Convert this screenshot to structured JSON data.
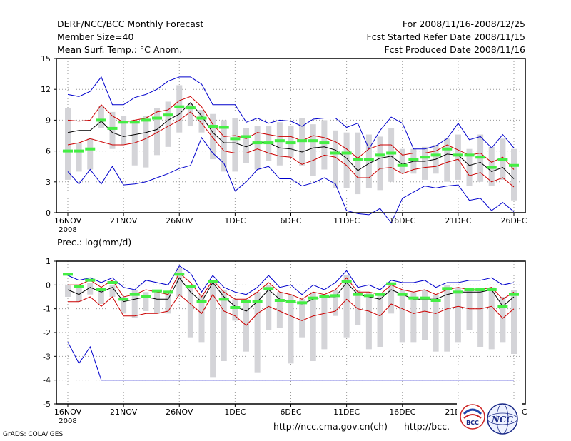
{
  "header": {
    "title": "DERF/NCC/BCC Monthly Forecast",
    "member_size": "Member Size=40",
    "variable": "Mean Surf. Temp.: °C Anom.",
    "period": "For 2008/11/16-2008/12/25",
    "refer_date": "Fcst Started Refer Date 2008/11/15",
    "produced_date": "Fcst Produced Date 2008/11/16"
  },
  "footer": {
    "url1": "http://ncc.cma.gov.cn(ch)",
    "url2": "http://bcc.",
    "credit": "GrADS: COLA/IGES",
    "logo_left": "BCC",
    "logo_right": "NCC"
  },
  "chart_data": [
    {
      "type": "line",
      "title": "Mean Surf. Temp.: °C Anom.",
      "ylim": [
        0,
        15
      ],
      "yticks": [
        0,
        3,
        6,
        9,
        12,
        15
      ],
      "xticks": [
        {
          "day": 0,
          "label": "16NOV",
          "sub": "2008"
        },
        {
          "day": 5,
          "label": "21NOV"
        },
        {
          "day": 10,
          "label": "26NOV"
        },
        {
          "day": 15,
          "label": "1DEC"
        },
        {
          "day": 20,
          "label": "6DEC"
        },
        {
          "day": 25,
          "label": "11DEC"
        },
        {
          "day": 30,
          "label": "16DEC"
        },
        {
          "day": 35,
          "label": "21DEC"
        },
        {
          "day": 40,
          "label": "26DEC"
        }
      ],
      "grid": true,
      "colors": {
        "max": "#0000cc",
        "min": "#0000cc",
        "spread": "#cc0000",
        "mean": "#000000",
        "obs": "#44ee44",
        "box": "#d4d4d8"
      },
      "series": [
        {
          "name": "max",
          "values": [
            11.5,
            11.3,
            11.8,
            13.2,
            10.5,
            10.5,
            11.2,
            11.5,
            12,
            12.8,
            13.2,
            13.2,
            12.5,
            10.5,
            10.5,
            10.5,
            8.8,
            9.2,
            8.7,
            9,
            8.9,
            8.4,
            9.1,
            9.2,
            9.2,
            8.3,
            8.7,
            6.2,
            8,
            9.3,
            8.7,
            6.2,
            6.2,
            6.5,
            7.2,
            8.7,
            7.1,
            7.4,
            6.3,
            7.6,
            6.3
          ]
        },
        {
          "name": "min",
          "values": [
            4,
            2.8,
            4.2,
            2.8,
            4.5,
            2.7,
            2.8,
            3,
            3.4,
            3.8,
            4.3,
            4.6,
            7.3,
            5.8,
            4.8,
            2.1,
            3,
            4.2,
            4.5,
            3.3,
            3.3,
            2.6,
            2.9,
            3.4,
            2.8,
            0.2,
            -0.1,
            -0.2,
            0.4,
            -1,
            1.4,
            2,
            2.6,
            2.4,
            2.6,
            2.7,
            1.2,
            1.4,
            0.2,
            1,
            0.1
          ]
        },
        {
          "name": "upper",
          "values": [
            9,
            8.9,
            9,
            10.5,
            9.4,
            8.8,
            9,
            9.2,
            9.8,
            10,
            10.9,
            11.3,
            10.3,
            8.6,
            7.4,
            7.5,
            7.2,
            7.8,
            7.6,
            7.4,
            7.4,
            7,
            7.5,
            7.3,
            6.9,
            6.2,
            5.3,
            6.2,
            6.6,
            6.6,
            5.6,
            5.8,
            5.8,
            6,
            6.6,
            6.1,
            5.6,
            5.8,
            4.9,
            5.4,
            4.2
          ]
        },
        {
          "name": "lower",
          "values": [
            6.6,
            6.8,
            7.2,
            6.9,
            6.6,
            6.6,
            6.8,
            7.2,
            7.8,
            8.4,
            9,
            9.8,
            8.7,
            7.3,
            6,
            5.8,
            5.8,
            6.2,
            5.8,
            5.5,
            5.4,
            4.7,
            5.1,
            5.6,
            5.4,
            4.6,
            3.4,
            3.4,
            4.3,
            4.4,
            3.8,
            4.2,
            4.4,
            4.5,
            4.9,
            5.2,
            3.6,
            3.9,
            3,
            3.4,
            2.5
          ]
        },
        {
          "name": "mean",
          "values": [
            7.8,
            8,
            8,
            8.9,
            7.8,
            7.4,
            7.6,
            7.8,
            8.1,
            9,
            9.6,
            10.7,
            9.4,
            7.8,
            6.8,
            6.8,
            6.4,
            6.9,
            6.8,
            6.3,
            6.2,
            5.9,
            6.3,
            6.4,
            6.1,
            5.3,
            4.1,
            4.8,
            5.3,
            5.5,
            4.7,
            5,
            5,
            5.2,
            5.7,
            5.6,
            4.6,
            4.9,
            4,
            4.4,
            3.3
          ]
        },
        {
          "name": "obs",
          "values": [
            6,
            6,
            6.2,
            9,
            8.2,
            8.8,
            8.8,
            9,
            9.2,
            9.5,
            10.3,
            10.2,
            9.2,
            8.4,
            8.3,
            7.2,
            7.4,
            6.8,
            6.8,
            7,
            6.8,
            7,
            7,
            6.8,
            5.8,
            5.8,
            5.2,
            5.2,
            5.6,
            5.8,
            4.6,
            5.2,
            5.4,
            5.6,
            6.2,
            5.6,
            5.6,
            5.4,
            4.4,
            5.2,
            4.6
          ]
        },
        {
          "name": "box_high",
          "values": [
            10.2,
            6.8,
            7.2,
            10.4,
            9.8,
            9.4,
            8.8,
            9.4,
            10.2,
            10.8,
            12.4,
            10.6,
            10,
            9.6,
            9,
            9.2,
            8.2,
            8.4,
            8.4,
            8.8,
            8.4,
            9.2,
            8.6,
            9,
            8,
            7.8,
            7.8,
            7.6,
            7.4,
            8.2,
            6.2,
            6.2,
            6.4,
            6.6,
            7.2,
            7.6,
            6.2,
            7.6,
            6.4,
            7.2,
            6.2
          ]
        },
        {
          "name": "box_low",
          "values": [
            3.2,
            4,
            4.2,
            8.2,
            6.2,
            6.6,
            4.6,
            4.4,
            5.6,
            6.4,
            7.8,
            8.4,
            7.8,
            5.2,
            4,
            4,
            4.8,
            4.2,
            5,
            4.6,
            5.4,
            4.6,
            3.6,
            4.2,
            2.4,
            2.4,
            1.8,
            2.4,
            2.2,
            3,
            3.8,
            3.8,
            3.2,
            3.8,
            3,
            3.2,
            2.6,
            3,
            2.6,
            3.2,
            1.2
          ]
        }
      ]
    },
    {
      "type": "line",
      "title": "Prec.: log(mm/d)",
      "ylim": [
        -5,
        1
      ],
      "yticks": [
        -5,
        -4,
        -3,
        -2,
        -1,
        0,
        1
      ],
      "xticks": [
        {
          "day": 0,
          "label": "16NOV",
          "sub": "2008"
        },
        {
          "day": 5,
          "label": "21NOV"
        },
        {
          "day": 10,
          "label": "26NOV"
        },
        {
          "day": 15,
          "label": "1DEC"
        },
        {
          "day": 20,
          "label": "6DEC"
        },
        {
          "day": 25,
          "label": "11DEC"
        },
        {
          "day": 30,
          "label": "16DEC"
        },
        {
          "day": 35,
          "label": "21DEC"
        },
        {
          "day": 40,
          "label": "26DEC"
        }
      ],
      "grid": true,
      "colors": {
        "max": "#0000cc",
        "min": "#0000cc",
        "spread": "#cc0000",
        "mean": "#000000",
        "obs": "#44ee44",
        "box": "#d4d4d8"
      },
      "series": [
        {
          "name": "max",
          "values": [
            0.4,
            0.2,
            0.3,
            0.1,
            0.3,
            -0.1,
            -0.2,
            0.2,
            0.1,
            0,
            0.8,
            0.5,
            -0.3,
            0.4,
            -0.1,
            -0.3,
            -0.4,
            -0.1,
            0.4,
            -0.1,
            0,
            -0.4,
            0,
            -0.2,
            0.1,
            0.6,
            -0.1,
            0,
            -0.2,
            0.2,
            0.1,
            0.1,
            0.2,
            -0.1,
            0.1,
            0.1,
            0.2,
            0.2,
            0.3,
            0,
            0.1
          ]
        },
        {
          "name": "min",
          "values": [
            -2.4,
            -3.3,
            -2.6,
            -4,
            -4,
            -4,
            -4,
            -4,
            -4,
            -4,
            -4,
            -4,
            -4,
            -4,
            -4,
            -4,
            -4,
            -4,
            -4,
            -4,
            -4,
            -4,
            -4,
            -4,
            -4,
            -4,
            -4,
            -4,
            -4,
            -4,
            -4,
            -4,
            -4,
            -4,
            -4,
            -4,
            -4,
            -4,
            -4,
            -4,
            -4
          ]
        },
        {
          "name": "upper",
          "values": [
            0,
            0,
            0.2,
            -0.1,
            0.2,
            -0.5,
            -0.4,
            -0.2,
            -0.3,
            -0.4,
            0.5,
            0.1,
            -0.5,
            0.2,
            -0.3,
            -0.6,
            -0.6,
            -0.3,
            0.1,
            -0.3,
            -0.4,
            -0.6,
            -0.3,
            -0.4,
            -0.2,
            0.3,
            -0.3,
            -0.3,
            -0.4,
            0,
            -0.2,
            -0.3,
            -0.2,
            -0.4,
            -0.2,
            -0.1,
            -0.2,
            -0.2,
            -0.1,
            -0.6,
            -0.3
          ]
        },
        {
          "name": "lower",
          "values": [
            -0.7,
            -0.7,
            -0.5,
            -0.9,
            -0.5,
            -1.3,
            -1.3,
            -1.2,
            -1.2,
            -1.1,
            -0.4,
            -0.8,
            -1.2,
            -0.4,
            -1.1,
            -1.3,
            -1.7,
            -1.2,
            -0.9,
            -1.1,
            -1.3,
            -1.5,
            -1.3,
            -1.2,
            -1.1,
            -0.6,
            -1,
            -1.1,
            -1.3,
            -0.8,
            -1,
            -1.2,
            -1.1,
            -1.2,
            -1,
            -0.9,
            -1,
            -1,
            -0.9,
            -1.4,
            -1
          ]
        },
        {
          "name": "mean",
          "values": [
            -0.2,
            -0.4,
            -0.1,
            -0.3,
            -0.1,
            -0.7,
            -0.6,
            -0.5,
            -0.6,
            -0.6,
            0.3,
            -0.3,
            -0.7,
            0.1,
            -0.5,
            -0.9,
            -1.1,
            -0.7,
            -0.2,
            -0.6,
            -0.7,
            -0.8,
            -0.6,
            -0.5,
            -0.5,
            0.1,
            -0.4,
            -0.5,
            -0.6,
            -0.2,
            -0.4,
            -0.6,
            -0.6,
            -0.6,
            -0.4,
            -0.3,
            -0.3,
            -0.3,
            -0.2,
            -0.9,
            -0.5
          ]
        },
        {
          "name": "obs",
          "values": [
            0.45,
            -0.05,
            0.2,
            -0.2,
            0.1,
            -0.6,
            -0.4,
            -0.5,
            -0.25,
            -0.3,
            0.45,
            -0.05,
            -0.7,
            0.15,
            -0.6,
            -0.95,
            -0.7,
            -0.7,
            -0.15,
            -0.65,
            -0.7,
            -0.75,
            -0.55,
            -0.5,
            -0.45,
            0.15,
            -0.4,
            -0.45,
            -0.4,
            0.05,
            -0.4,
            -0.55,
            -0.55,
            -0.65,
            -0.15,
            -0.3,
            -0.2,
            -0.2,
            -0.2,
            -0.9,
            -0.4
          ]
        },
        {
          "name": "box_high",
          "values": [
            0,
            -0.1,
            0.1,
            -0.2,
            0,
            -0.5,
            -0.2,
            -0.3,
            -0.3,
            -0.3,
            0.7,
            0,
            -0.4,
            0.1,
            -0.2,
            -0.6,
            -0.6,
            -0.3,
            0,
            -0.3,
            -0.4,
            -0.6,
            -0.3,
            -0.4,
            -0.2,
            0.4,
            -0.2,
            -0.3,
            -0.4,
            0.1,
            -0.2,
            -0.3,
            -0.2,
            -0.4,
            0,
            -0.1,
            -0.2,
            -0.2,
            -0.1,
            -0.5,
            -0.2
          ]
        },
        {
          "name": "box_low",
          "values": [
            -0.5,
            -0.7,
            -0.4,
            -0.8,
            -0.5,
            -1.2,
            -1.4,
            -1.1,
            -1.2,
            -1.2,
            -0.5,
            -2.2,
            -2.4,
            -3.9,
            -3.2,
            -1.5,
            -2.8,
            -3.7,
            -1.9,
            -1.8,
            -3.3,
            -2.2,
            -3.2,
            -2.7,
            -1.3,
            -2.2,
            -1.7,
            -2.7,
            -2.6,
            -1.2,
            -2.4,
            -2.4,
            -2.3,
            -2.8,
            -2.8,
            -2.4,
            -1.9,
            -2.6,
            -2.7,
            -2.4,
            -2.9
          ]
        }
      ]
    }
  ]
}
